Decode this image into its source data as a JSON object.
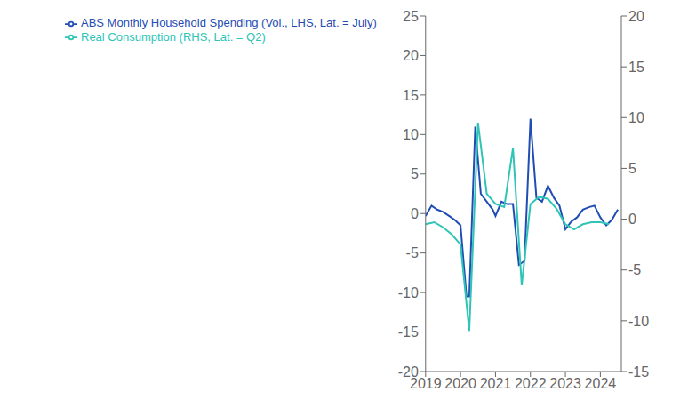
{
  "chart_data": {
    "type": "line",
    "xlim": [
      2019,
      2024.6
    ],
    "xticks": [
      2019,
      2020,
      2021,
      2022,
      2023,
      2024
    ],
    "ylim": [
      -20,
      25
    ],
    "yticks": [
      -20,
      -15,
      -10,
      -5,
      0,
      5,
      10,
      15,
      20,
      25
    ],
    "y2lim": [
      -15,
      20
    ],
    "y2ticks": [
      -15,
      -10,
      -5,
      0,
      5,
      10,
      15,
      20
    ],
    "grid": false,
    "legend": "upper left",
    "series": [
      {
        "name": "ABS Monthly Household Spending (Vol., LHS, Lat. = July)",
        "color": "#1f4db3",
        "x": [
          2019.0,
          2019.17,
          2019.33,
          2019.5,
          2019.67,
          2019.83,
          2020.0,
          2020.17,
          2020.25,
          2020.42,
          2020.58,
          2020.75,
          2020.92,
          2021.0,
          2021.17,
          2021.33,
          2021.5,
          2021.67,
          2021.83,
          2022.0,
          2022.17,
          2022.33,
          2022.5,
          2022.67,
          2022.83,
          2023.0,
          2023.17,
          2023.33,
          2023.5,
          2023.67,
          2023.83,
          2024.0,
          2024.17,
          2024.33,
          2024.5
        ],
        "values": [
          -0.3,
          1.0,
          0.5,
          0.2,
          -0.3,
          -0.8,
          -1.5,
          -10.5,
          -10.5,
          11.0,
          2.5,
          1.5,
          0.5,
          -0.3,
          1.5,
          1.2,
          1.2,
          -6.5,
          -6.0,
          12.0,
          2.0,
          1.5,
          3.5,
          2.0,
          1.0,
          -2.0,
          -1.0,
          -0.5,
          0.5,
          0.8,
          1.0,
          -0.5,
          -1.5,
          -0.8,
          0.5
        ]
      },
      {
        "name": "Real Consumption (RHS, Lat. = Q2)",
        "color": "#2ec4b6",
        "axis": "y2",
        "x": [
          2019.0,
          2019.25,
          2019.5,
          2019.75,
          2020.0,
          2020.25,
          2020.5,
          2020.75,
          2021.0,
          2021.25,
          2021.5,
          2021.75,
          2022.0,
          2022.25,
          2022.5,
          2022.75,
          2023.0,
          2023.25,
          2023.5,
          2023.75,
          2024.0,
          2024.25
        ],
        "values": [
          -0.5,
          -0.3,
          -0.8,
          -1.5,
          -2.5,
          -11.0,
          9.5,
          2.5,
          1.5,
          1.2,
          7.0,
          -6.5,
          1.5,
          2.2,
          2.0,
          1.0,
          -0.5,
          -1.0,
          -0.5,
          -0.3,
          -0.3,
          -0.5
        ]
      }
    ]
  }
}
